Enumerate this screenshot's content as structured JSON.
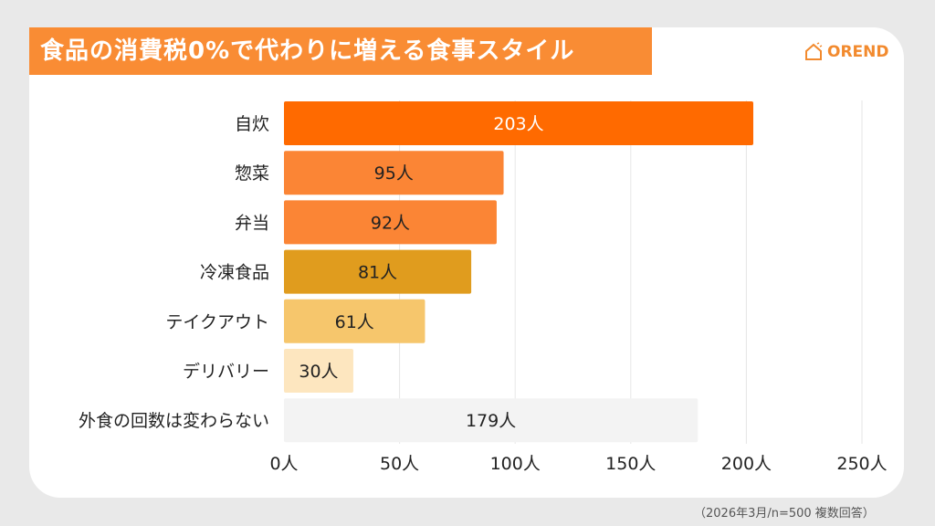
{
  "title": "食品の消費税0%で代わりに増える食事スタイル",
  "logo": "OREND",
  "note": "（2026年3月/n=500 複数回答）",
  "chart_data": {
    "type": "bar",
    "orientation": "horizontal",
    "categories": [
      "自炊",
      "惣菜",
      "弁当",
      "冷凍食品",
      "テイクアウト",
      "デリバリー",
      "外食の回数は変わらない"
    ],
    "values": [
      203,
      95,
      92,
      81,
      61,
      30,
      179
    ],
    "data_labels": [
      "203人",
      "95人",
      "92人",
      "81人",
      "61人",
      "30人",
      "179人"
    ],
    "colors": [
      "#ff6a00",
      "#fb8535",
      "#fb8535",
      "#e09c1e",
      "#f6c66c",
      "#fde6bf",
      "#f3f3f3"
    ],
    "label_colors": [
      "#ffffff",
      "#222222",
      "#222222",
      "#222222",
      "#222222",
      "#222222",
      "#222222"
    ],
    "xlim": [
      0,
      250
    ],
    "xticks": [
      0,
      50,
      100,
      150,
      200,
      250
    ],
    "xtick_labels": [
      "0人",
      "50人",
      "100人",
      "150人",
      "200人",
      "250人"
    ],
    "grid": true,
    "xlabel": "",
    "ylabel": ""
  }
}
